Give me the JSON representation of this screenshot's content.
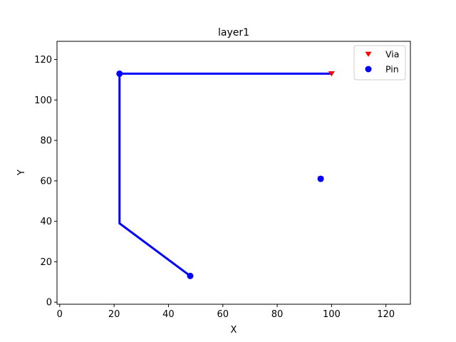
{
  "chart_data": {
    "type": "scatter",
    "title": "layer1",
    "xlabel": "X",
    "ylabel": "Y",
    "xlim": [
      -1,
      129
    ],
    "ylim": [
      -1,
      129
    ],
    "xticks": [
      0,
      20,
      40,
      60,
      80,
      100,
      120
    ],
    "yticks": [
      0,
      20,
      40,
      60,
      80,
      100,
      120
    ],
    "grid": false,
    "legend_position": "top-right",
    "route": {
      "name": "route",
      "color": "#0000ff",
      "points": [
        [
          48,
          13
        ],
        [
          22,
          39
        ],
        [
          22,
          113
        ],
        [
          100,
          113
        ]
      ]
    },
    "series": [
      {
        "name": "Via",
        "marker": "triangle-down",
        "color": "#ff0000",
        "points": [
          [
            100,
            113
          ],
          [
            96,
            61
          ]
        ]
      },
      {
        "name": "Pin",
        "marker": "circle",
        "color": "#0000ff",
        "points": [
          [
            22,
            113
          ],
          [
            48,
            13
          ],
          [
            96,
            61
          ]
        ]
      }
    ]
  }
}
